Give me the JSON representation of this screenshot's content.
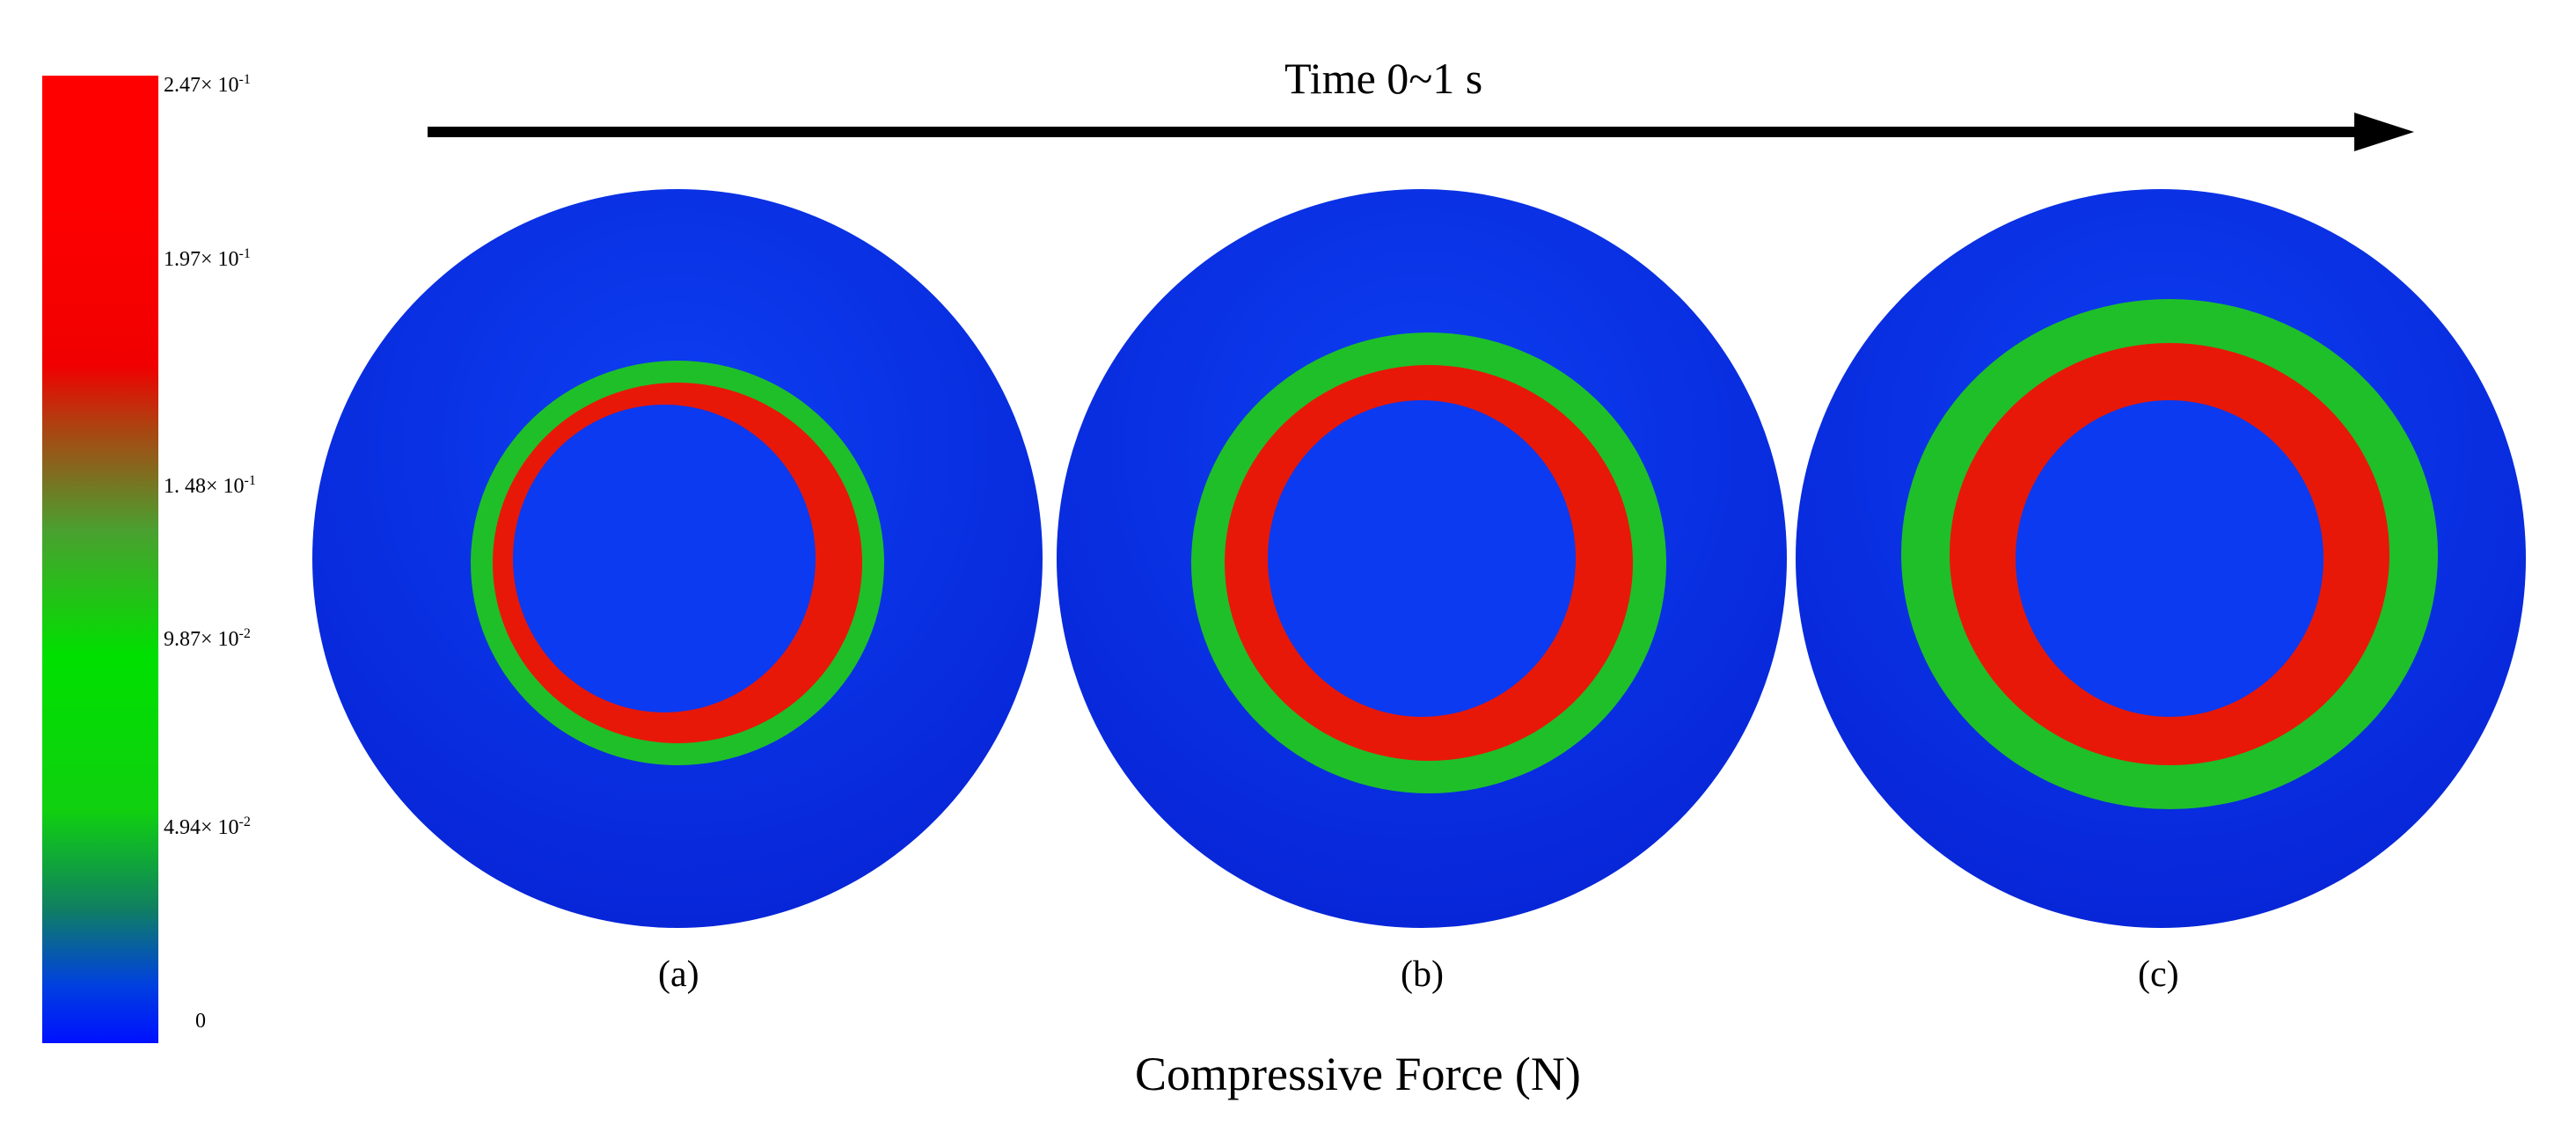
{
  "colorbar": {
    "ticks": [
      {
        "mantissa": "2.47",
        "exp": "-1"
      },
      {
        "mantissa": "1.97",
        "exp": "-1"
      },
      {
        "mantissa": "1. 48",
        "exp": "-1"
      },
      {
        "mantissa": "9.87",
        "exp": "-2"
      },
      {
        "mantissa": "4.94",
        "exp": "-2"
      },
      {
        "mantissa": "0",
        "exp": ""
      }
    ],
    "times_symbol": "×",
    "base": "10"
  },
  "time_axis": {
    "label": "Time 0~1 s"
  },
  "panels": [
    {
      "label": "(a)"
    },
    {
      "label": "(b)"
    },
    {
      "label": "(c)"
    }
  ],
  "footer_label": "Compressive Force (N)",
  "colors": {
    "outer_blue": "#0a2fe6",
    "inner_blue": "#0b3af0",
    "green": "#1fbf2a",
    "red": "#e81808",
    "arrow": "#000000"
  }
}
